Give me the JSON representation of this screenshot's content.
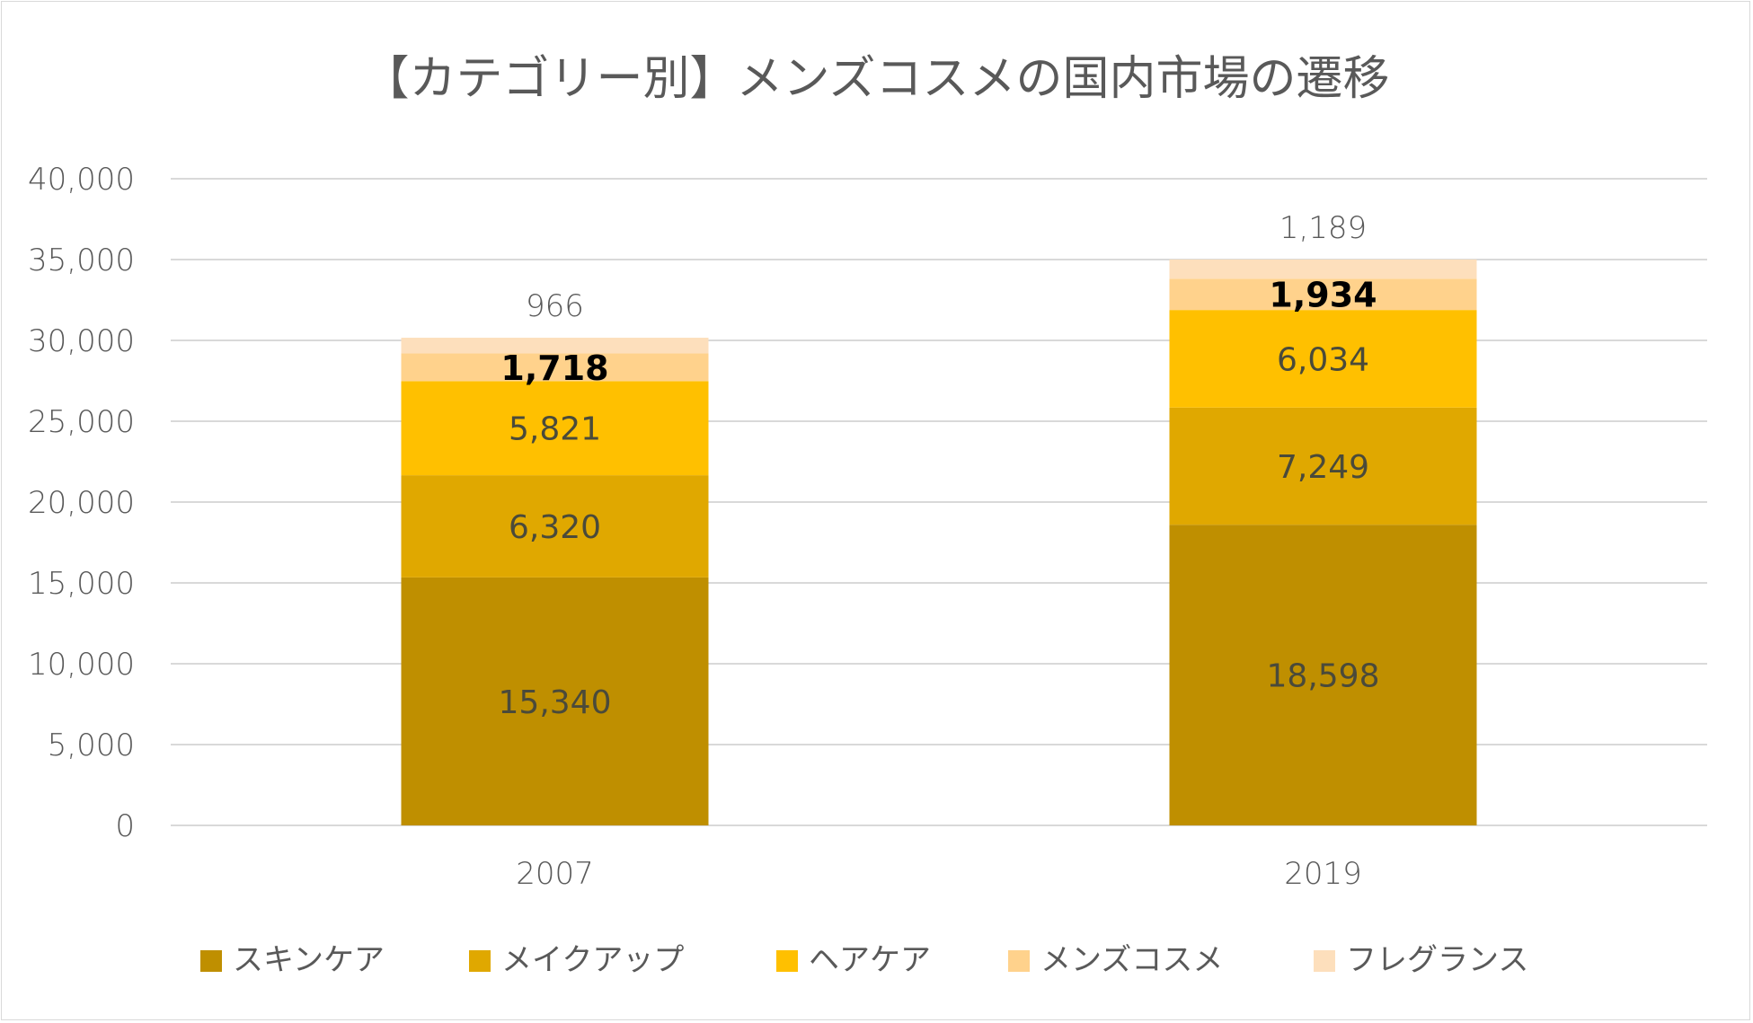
{
  "chart_data": {
    "type": "bar",
    "stacked": true,
    "title": "【カテゴリー別】メンズコスメの国内市場の遷移",
    "xlabel": "",
    "ylabel": "",
    "categories": [
      "2007",
      "2019"
    ],
    "ylim": [
      0,
      40000
    ],
    "yticks": [
      0,
      5000,
      10000,
      15000,
      20000,
      25000,
      30000,
      35000,
      40000
    ],
    "ytick_labels": [
      "0",
      "5,000",
      "10,000",
      "15,000",
      "20,000",
      "25,000",
      "30,000",
      "35,000",
      "40,000"
    ],
    "grid": true,
    "legend_position": "bottom",
    "series": [
      {
        "name": "スキンケア",
        "values": [
          15340,
          18598
        ],
        "labels": [
          "15,340",
          "18,598"
        ],
        "color": "#BF8F00"
      },
      {
        "name": "メイクアップ",
        "values": [
          6320,
          7249
        ],
        "labels": [
          "6,320",
          "7,249"
        ],
        "color": "#E0A800"
      },
      {
        "name": "ヘアケア",
        "values": [
          5821,
          6034
        ],
        "labels": [
          "5,821",
          "6,034"
        ],
        "color": "#FFC000"
      },
      {
        "name": "メンズコスメ",
        "values": [
          1718,
          1934
        ],
        "labels": [
          "1,718",
          "1,934"
        ],
        "color": "#FFD28C",
        "label_bold": true
      },
      {
        "name": "フレグランス",
        "values": [
          966,
          1189
        ],
        "labels": [
          "966",
          "1,189"
        ],
        "color": "#FDDFBC",
        "label_above": true
      }
    ]
  }
}
